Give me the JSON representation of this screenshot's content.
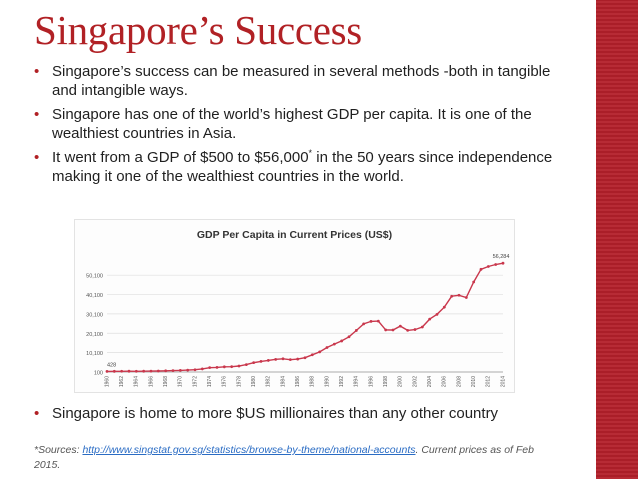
{
  "slide": {
    "title": "Singapore’s Success",
    "bullets": [
      "Singapore’s success can be measured in several methods -both in tangible and intangible ways.",
      "Singapore has one of the world’s highest GDP per capita. It is one of the wealthiest countries in Asia."
    ],
    "bullet3_before": "It went from a GDP of $500 to $56,000",
    "bullet3_sup": "*",
    "bullet3_after": " in the 50 years since independence making it one of the wealthiest countries in the world.",
    "bottom_bullet": "Singapore is home to more $US millionaires than any other country",
    "sources_prefix": "*Sources: ",
    "sources_link": "http://www.singstat.gov.sg/statistics/browse-by-theme/national-accounts",
    "sources_suffix": ". Current prices as of Feb 2015.",
    "bullet_glyph": "•"
  },
  "colors": {
    "accent": "#b12125",
    "series": "#c9374c"
  },
  "chart_data": {
    "type": "line",
    "title": "GDP Per Capita in Current Prices (US$)",
    "xlabel": "",
    "ylabel": "",
    "categories": [
      "1960",
      "1962",
      "1964",
      "1966",
      "1968",
      "1970",
      "1972",
      "1974",
      "1976",
      "1978",
      "1980",
      "1982",
      "1984",
      "1986",
      "1988",
      "1990",
      "1992",
      "1994",
      "1996",
      "1998",
      "2000",
      "2002",
      "2004",
      "2006",
      "2008",
      "2010",
      "2012",
      "2014"
    ],
    "x": [
      1960,
      1961,
      1962,
      1963,
      1964,
      1965,
      1966,
      1967,
      1968,
      1969,
      1970,
      1971,
      1972,
      1973,
      1974,
      1975,
      1976,
      1977,
      1978,
      1979,
      1980,
      1981,
      1982,
      1983,
      1984,
      1985,
      1986,
      1987,
      1988,
      1989,
      1990,
      1991,
      1992,
      1993,
      1994,
      1995,
      1996,
      1997,
      1998,
      1999,
      2000,
      2001,
      2002,
      2003,
      2004,
      2005,
      2006,
      2007,
      2008,
      2009,
      2010,
      2011,
      2012,
      2013,
      2014
    ],
    "series": [
      {
        "name": "",
        "values": [
          428,
          449,
          472,
          511,
          485,
          516,
          566,
          625,
          708,
          812,
          925,
          1071,
          1264,
          1685,
          2341,
          2490,
          2768,
          2846,
          3193,
          3900,
          4928,
          5596,
          6078,
          6633,
          6911,
          6477,
          6768,
          7475,
          8990,
          10500,
          12766,
          14505,
          16135,
          18290,
          21552,
          24937,
          26233,
          26375,
          21829,
          21796,
          23793,
          21577,
          22016,
          23320,
          27405,
          29870,
          33580,
          39224,
          39722,
          38577,
          46570,
          53117,
          54578,
          55618,
          56284
        ]
      }
    ],
    "ytick_labels": [
      "100",
      "10,100",
      "20,100",
      "30,100",
      "40,100",
      "50,100"
    ],
    "ylim": [
      100,
      60000
    ],
    "annotations": [
      {
        "x": 1960,
        "label": "428"
      },
      {
        "x": 2014,
        "label": "56,284"
      }
    ],
    "grid": true,
    "legend": "none"
  }
}
